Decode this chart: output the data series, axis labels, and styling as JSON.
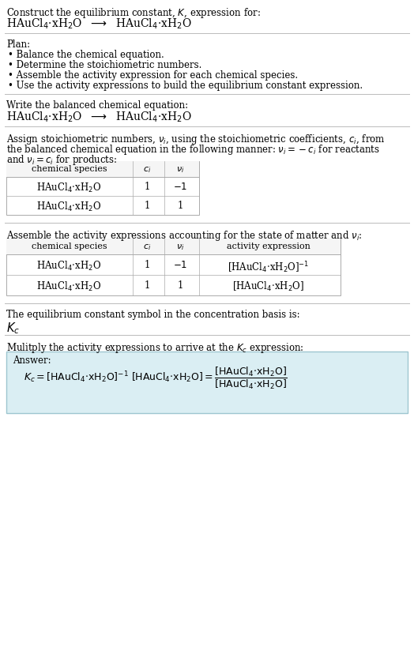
{
  "title_line1": "Construct the equilibrium constant, $K$, expression for:",
  "title_line2": "HAuCl$_4$·xH$_2$O  $\\longrightarrow$  HAuCl$_4$·xH$_2$O",
  "plan_header": "Plan:",
  "plan_items": [
    "• Balance the chemical equation.",
    "• Determine the stoichiometric numbers.",
    "• Assemble the activity expression for each chemical species.",
    "• Use the activity expressions to build the equilibrium constant expression."
  ],
  "balanced_eq_header": "Write the balanced chemical equation:",
  "balanced_eq": "HAuCl$_4$·xH$_2$O  $\\longrightarrow$  HAuCl$_4$·xH$_2$O",
  "stoich_line1": "Assign stoichiometric numbers, $\\nu_i$, using the stoichiometric coefficients, $c_i$, from",
  "stoich_line2": "the balanced chemical equation in the following manner: $\\nu_i = -c_i$ for reactants",
  "stoich_line3": "and $\\nu_i = c_i$ for products:",
  "table1_headers": [
    "chemical species",
    "$c_i$",
    "$\\nu_i$"
  ],
  "table1_rows": [
    [
      "HAuCl$_4$·xH$_2$O",
      "1",
      "$-1$"
    ],
    [
      "HAuCl$_4$·xH$_2$O",
      "1",
      "1"
    ]
  ],
  "activity_header": "Assemble the activity expressions accounting for the state of matter and $\\nu_i$:",
  "table2_headers": [
    "chemical species",
    "$c_i$",
    "$\\nu_i$",
    "activity expression"
  ],
  "table2_rows": [
    [
      "HAuCl$_4$·xH$_2$O",
      "1",
      "$-1$",
      "[HAuCl$_4$·xH$_2$O]$^{-1}$"
    ],
    [
      "HAuCl$_4$·xH$_2$O",
      "1",
      "1",
      "[HAuCl$_4$·xH$_2$O]"
    ]
  ],
  "kc_header": "The equilibrium constant symbol in the concentration basis is:",
  "kc_symbol": "$K_c$",
  "multiply_header": "Mulitply the activity expressions to arrive at the $K_c$ expression:",
  "answer_box_color": "#daeef3",
  "answer_border_color": "#9ec6d0",
  "answer_label": "Answer:",
  "bg_color": "#ffffff",
  "text_color": "#000000",
  "separator_color": "#bbbbbb",
  "table_border_color": "#aaaaaa",
  "font_size": 8.5,
  "fig_width": 5.24,
  "fig_height": 8.33,
  "dpi": 100
}
